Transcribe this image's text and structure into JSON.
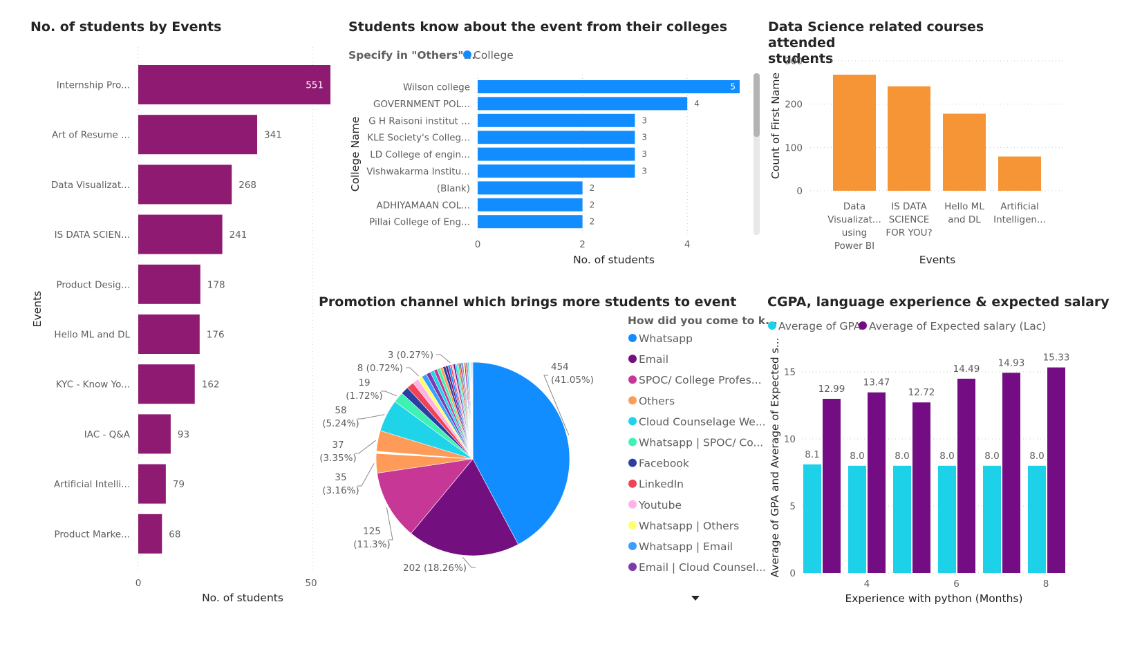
{
  "titles": {
    "events": "No. of students by Events",
    "colleges": "Students know about the event from their colleges",
    "ds": "Data Science related courses attended students",
    "ds_line1": "Data Science related courses attended",
    "ds_line2": "students",
    "promo": "Promotion channel which brings more students to event",
    "cgpa": "CGPA, language experience & expected salary"
  },
  "chart_data": [
    {
      "id": "events",
      "type": "bar",
      "orientation": "horizontal",
      "title": "No. of students by Events",
      "xlabel": "No. of students",
      "ylabel": "Events",
      "categories": [
        "Internship Pro...",
        "Art of Resume ...",
        "Data Visualizat...",
        "IS DATA SCIEN...",
        "Product Desig...",
        "Hello ML and DL",
        "KYC - Know Yo...",
        "IAC - Q&A",
        "Artificial Intelli...",
        "Product Marke..."
      ],
      "values": [
        551,
        341,
        268,
        241,
        178,
        176,
        162,
        93,
        79,
        68
      ],
      "x_ticks": [
        "0",
        "50"
      ],
      "color": "#8e1a72"
    },
    {
      "id": "colleges",
      "type": "bar",
      "orientation": "horizontal",
      "title": "Students know about the event from their colleges",
      "legend_title": "Specify in \"Others\"...",
      "legend": [
        "College"
      ],
      "xlabel": "No. of students",
      "ylabel": "College Name",
      "categories": [
        "Wilson college",
        "GOVERNMENT POL...",
        "G H Raisoni institut ...",
        "KLE Society's Colleg...",
        "LD College of engin...",
        "Vishwakarma Institu...",
        "(Blank)",
        "ADHIYAMAAN COL...",
        "Pillai College of Eng..."
      ],
      "values": [
        5,
        4,
        3,
        3,
        3,
        3,
        2,
        2,
        2
      ],
      "xlim": [
        0,
        5
      ],
      "x_ticks": [
        "0",
        "2",
        "4"
      ],
      "color": "#118dff"
    },
    {
      "id": "ds_courses",
      "type": "bar",
      "title": "Data Science related courses attended students",
      "xlabel": "Events",
      "ylabel": "Count of First Name",
      "categories": [
        [
          "Data",
          "Visualizat...",
          "using",
          "Power BI"
        ],
        [
          "IS DATA",
          "SCIENCE",
          "FOR YOU?"
        ],
        [
          "Hello ML",
          "and DL"
        ],
        [
          "Artificial",
          "Intelligen..."
        ]
      ],
      "values": [
        268,
        241,
        178,
        79
      ],
      "ylim": [
        0,
        300
      ],
      "y_ticks": [
        "0",
        "100",
        "200",
        "300"
      ],
      "color": "#f59536"
    },
    {
      "id": "promotion",
      "type": "pie",
      "title": "Promotion channel which brings more students to event",
      "legend_title": "How did you come to k...",
      "legend": [
        {
          "name": "Whatsapp",
          "color": "#118dff"
        },
        {
          "name": "Email",
          "color": "#740f80"
        },
        {
          "name": "SPOC/ College Profes...",
          "color": "#c63796"
        },
        {
          "name": "Others",
          "color": "#ff9b58"
        },
        {
          "name": "Cloud Counselage We...",
          "color": "#1fd3e8"
        },
        {
          "name": "Whatsapp | SPOC/ Co...",
          "color": "#3ff2b2"
        },
        {
          "name": "Facebook",
          "color": "#2b3fa3"
        },
        {
          "name": "LinkedIn",
          "color": "#ef4357"
        },
        {
          "name": "Youtube",
          "color": "#ffb2e6"
        },
        {
          "name": "Whatsapp | Others",
          "color": "#ffff70"
        },
        {
          "name": "Whatsapp | Email",
          "color": "#3aa0ff"
        },
        {
          "name": "Email | Cloud Counsel...",
          "color": "#7c3aac"
        }
      ],
      "slices": [
        {
          "value": 454,
          "label": [
            "454",
            "(41.05%)"
          ],
          "color": "#118dff"
        },
        {
          "value": 202,
          "label": [
            "202 (18.26%)"
          ],
          "color": "#740f80"
        },
        {
          "value": 125,
          "label": [
            "125",
            "(11.3%)"
          ],
          "color": "#c63796"
        },
        {
          "value": 35,
          "label": [
            "35",
            "(3.16%)"
          ],
          "color": "#ff9b58"
        },
        {
          "value": 4,
          "label": [],
          "color": "#ffffff"
        },
        {
          "value": 37,
          "label": [
            "37",
            "(3.35%)"
          ],
          "color": "#ff9b58"
        },
        {
          "value": 58,
          "label": [
            "58",
            "(5.24%)"
          ],
          "color": "#1fd3e8"
        },
        {
          "value": 19,
          "label": [
            "19",
            "(1.72%)"
          ],
          "color": "#3ff2b2"
        },
        {
          "value": 14,
          "label": [],
          "color": "#2b3fa3"
        },
        {
          "value": 13,
          "label": [],
          "color": "#ef4357"
        },
        {
          "value": 11,
          "label": [],
          "color": "#ffb2e6"
        },
        {
          "value": 8,
          "label": [
            "8 (0.72%)"
          ],
          "color": "#ffff70"
        },
        {
          "value": 9,
          "label": [],
          "color": "#3aa0ff"
        },
        {
          "value": 8,
          "label": [],
          "color": "#7c3aac"
        },
        {
          "value": 7,
          "label": [],
          "color": "#1fd3e8"
        },
        {
          "value": 6,
          "label": [],
          "color": "#c63796"
        },
        {
          "value": 6,
          "label": [],
          "color": "#3ff2b2"
        },
        {
          "value": 5,
          "label": [],
          "color": "#ff9b58"
        },
        {
          "value": 5,
          "label": [],
          "color": "#2b3fa3"
        },
        {
          "value": 4,
          "label": [],
          "color": "#740f80"
        },
        {
          "value": 4,
          "label": [],
          "color": "#118dff"
        },
        {
          "value": 3,
          "label": [
            "3 (0.27%)"
          ],
          "color": "#ef4357"
        },
        {
          "value": 3,
          "label": [],
          "color": "#ffb2e6"
        },
        {
          "value": 3,
          "label": [],
          "color": "#6b007b"
        },
        {
          "value": 3,
          "label": [],
          "color": "#1fd3e8"
        },
        {
          "value": 3,
          "label": [],
          "color": "#3ff2b2"
        },
        {
          "value": 3,
          "label": [],
          "color": "#e66c37"
        },
        {
          "value": 2,
          "label": [],
          "color": "#2b3fa3"
        },
        {
          "value": 2,
          "label": [],
          "color": "#c63796"
        },
        {
          "value": 2,
          "label": [],
          "color": "#118dff"
        },
        {
          "value": 2,
          "label": [],
          "color": "#ffff70"
        },
        {
          "value": 2,
          "label": [],
          "color": "#740f80"
        },
        {
          "value": 2,
          "label": [],
          "color": "#ef4357"
        },
        {
          "value": 2,
          "label": [],
          "color": "#3aa0ff"
        },
        {
          "value": 2,
          "label": [],
          "color": "#1fd3e8"
        },
        {
          "value": 1,
          "label": [],
          "color": "#ff9b58"
        },
        {
          "value": 1,
          "label": [],
          "color": "#7c3aac"
        },
        {
          "value": 1,
          "label": [],
          "color": "#3ff2b2"
        },
        {
          "value": 1,
          "label": [],
          "color": "#ffb2e6"
        },
        {
          "value": 1,
          "label": [],
          "color": "#2b3fa3"
        },
        {
          "value": 1,
          "label": [],
          "color": "#c63796"
        },
        {
          "value": 1,
          "label": [],
          "color": "#118dff"
        }
      ]
    },
    {
      "id": "cgpa",
      "type": "bar",
      "title": "CGPA, language experience & expected salary",
      "legend": [
        "Average of GPA",
        "Average of Expected salary (Lac)"
      ],
      "xlabel": "Experience with python (Months)",
      "ylabel": "Average of GPA and Average of Expected s...",
      "x": [
        3,
        4,
        5,
        6,
        7,
        8
      ],
      "x_ticks": [
        "4",
        "6",
        "8"
      ],
      "series": [
        {
          "name": "Average of GPA",
          "values": [
            8.1,
            8.0,
            8.0,
            8.0,
            8.0,
            8.0
          ],
          "labels": [
            "8.1",
            "8.0",
            "8.0",
            "8.0",
            "8.0",
            "8.0"
          ],
          "color": "#1dd1e9"
        },
        {
          "name": "Average of Expected salary (Lac)",
          "values": [
            12.99,
            13.47,
            12.72,
            14.49,
            14.93,
            15.33
          ],
          "labels": [
            "12.99",
            "13.47",
            "12.72",
            "14.49",
            "14.93",
            "15.33"
          ],
          "color": "#740d84"
        }
      ],
      "ylim": [
        0,
        16.5
      ],
      "y_ticks": [
        "0",
        "5",
        "10",
        "15"
      ]
    }
  ]
}
